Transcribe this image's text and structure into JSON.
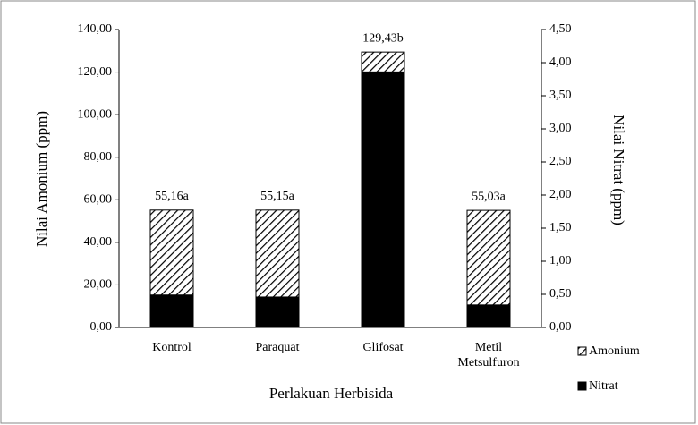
{
  "chart_data": {
    "type": "bar",
    "xlabel": "Perlakuan Herbisida",
    "ylabel": "Nilai Amonium (ppm)",
    "y2label": "Nilai Nitrat (ppm)",
    "categories": [
      "Kontrol",
      "Paraquat",
      "Glifosat",
      "Metil Metsulfuron"
    ],
    "series": [
      {
        "name": "Amonium",
        "color": "#000000",
        "fill": "hatch",
        "axis": "y",
        "values": [
          55.16,
          55.15,
          129.43,
          55.03
        ],
        "value_labels": [
          "55,16a",
          "55,15a",
          "129,43b",
          "55,03a"
        ]
      },
      {
        "name": "Nitrat",
        "color": "#000000",
        "fill": "solid",
        "axis": "y2",
        "values": [
          0.49,
          0.46,
          3.86,
          0.34
        ]
      }
    ],
    "ylim": [
      0,
      140
    ],
    "yticks": [
      {
        "value": 0,
        "label": "0,00"
      },
      {
        "value": 20,
        "label": "20,00"
      },
      {
        "value": 40,
        "label": "40,00"
      },
      {
        "value": 60,
        "label": "60,00"
      },
      {
        "value": 80,
        "label": "80,00"
      },
      {
        "value": 100,
        "label": "100,00"
      },
      {
        "value": 120,
        "label": "120,00"
      },
      {
        "value": 140,
        "label": "140,00"
      }
    ],
    "y2lim": [
      0,
      4.5
    ],
    "y2ticks": [
      {
        "value": 0,
        "label": "0,00"
      },
      {
        "value": 0.5,
        "label": "0,50"
      },
      {
        "value": 1,
        "label": "1,00"
      },
      {
        "value": 1.5,
        "label": "1,50"
      },
      {
        "value": 2,
        "label": "2,00"
      },
      {
        "value": 2.5,
        "label": "2,50"
      },
      {
        "value": 3,
        "label": "3,00"
      },
      {
        "value": 3.5,
        "label": "3,50"
      },
      {
        "value": 4,
        "label": "4,00"
      },
      {
        "value": 4.5,
        "label": "4,50"
      }
    ],
    "grid": false
  }
}
